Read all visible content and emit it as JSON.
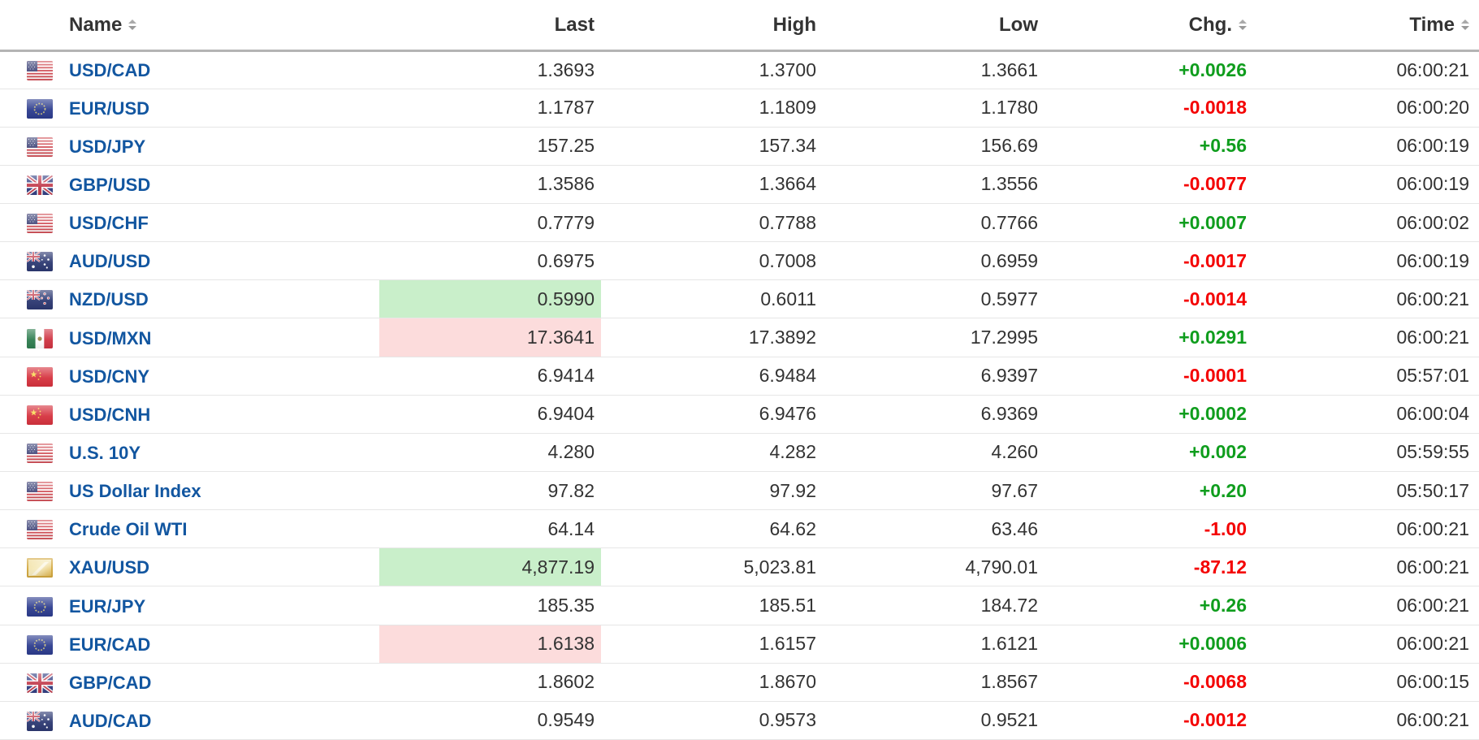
{
  "colors": {
    "link_blue": "#1256a0",
    "positive_green": "#0f9d1d",
    "negative_red": "#f40000",
    "highlight_up_bg": "#c9efca",
    "highlight_down_bg": "#fcdcdc",
    "header_text": "#333333",
    "value_text": "#333333"
  },
  "table": {
    "columns": [
      {
        "label": "Name",
        "sortable": true
      },
      {
        "label": "Last",
        "sortable": false
      },
      {
        "label": "High",
        "sortable": false
      },
      {
        "label": "Low",
        "sortable": false
      },
      {
        "label": "Chg.",
        "sortable": true
      },
      {
        "label": "Time",
        "sortable": true
      }
    ],
    "rows": [
      {
        "flag": "us-flag-icon",
        "name": "USD/CAD",
        "last": "1.3693",
        "high": "1.3700",
        "low": "1.3661",
        "chg": "+0.0026",
        "chg_direction": "up",
        "time": "06:00:21",
        "last_highlight": ""
      },
      {
        "flag": "eu-flag-icon",
        "name": "EUR/USD",
        "last": "1.1787",
        "high": "1.1809",
        "low": "1.1780",
        "chg": "-0.0018",
        "chg_direction": "down",
        "time": "06:00:20",
        "last_highlight": ""
      },
      {
        "flag": "us-flag-icon",
        "name": "USD/JPY",
        "last": "157.25",
        "high": "157.34",
        "low": "156.69",
        "chg": "+0.56",
        "chg_direction": "up",
        "time": "06:00:19",
        "last_highlight": ""
      },
      {
        "flag": "uk-flag-icon",
        "name": "GBP/USD",
        "last": "1.3586",
        "high": "1.3664",
        "low": "1.3556",
        "chg": "-0.0077",
        "chg_direction": "down",
        "time": "06:00:19",
        "last_highlight": ""
      },
      {
        "flag": "us-flag-icon",
        "name": "USD/CHF",
        "last": "0.7779",
        "high": "0.7788",
        "low": "0.7766",
        "chg": "+0.0007",
        "chg_direction": "up",
        "time": "06:00:02",
        "last_highlight": ""
      },
      {
        "flag": "australia-flag-icon",
        "name": "AUD/USD",
        "last": "0.6975",
        "high": "0.7008",
        "low": "0.6959",
        "chg": "-0.0017",
        "chg_direction": "down",
        "time": "06:00:19",
        "last_highlight": ""
      },
      {
        "flag": "new-zealand-flag-icon",
        "name": "NZD/USD",
        "last": "0.5990",
        "high": "0.6011",
        "low": "0.5977",
        "chg": "-0.0014",
        "chg_direction": "down",
        "time": "06:00:21",
        "last_highlight": "up"
      },
      {
        "flag": "mexico-flag-icon",
        "name": "USD/MXN",
        "last": "17.3641",
        "high": "17.3892",
        "low": "17.2995",
        "chg": "+0.0291",
        "chg_direction": "up",
        "time": "06:00:21",
        "last_highlight": "down"
      },
      {
        "flag": "china-flag-icon",
        "name": "USD/CNY",
        "last": "6.9414",
        "high": "6.9484",
        "low": "6.9397",
        "chg": "-0.0001",
        "chg_direction": "down",
        "time": "05:57:01",
        "last_highlight": ""
      },
      {
        "flag": "china-flag-icon",
        "name": "USD/CNH",
        "last": "6.9404",
        "high": "6.9476",
        "low": "6.9369",
        "chg": "+0.0002",
        "chg_direction": "up",
        "time": "06:00:04",
        "last_highlight": ""
      },
      {
        "flag": "us-flag-icon",
        "name": "U.S. 10Y",
        "last": "4.280",
        "high": "4.282",
        "low": "4.260",
        "chg": "+0.002",
        "chg_direction": "up",
        "time": "05:59:55",
        "last_highlight": ""
      },
      {
        "flag": "us-flag-icon",
        "name": "US Dollar Index",
        "last": "97.82",
        "high": "97.92",
        "low": "97.67",
        "chg": "+0.20",
        "chg_direction": "up",
        "time": "05:50:17",
        "last_highlight": ""
      },
      {
        "flag": "us-flag-icon",
        "name": "Crude Oil WTI",
        "last": "64.14",
        "high": "64.62",
        "low": "63.46",
        "chg": "-1.00",
        "chg_direction": "down",
        "time": "06:00:21",
        "last_highlight": ""
      },
      {
        "flag": "gold-icon",
        "name": "XAU/USD",
        "last": "4,877.19",
        "high": "5,023.81",
        "low": "4,790.01",
        "chg": "-87.12",
        "chg_direction": "down",
        "time": "06:00:21",
        "last_highlight": "up"
      },
      {
        "flag": "eu-flag-icon",
        "name": "EUR/JPY",
        "last": "185.35",
        "high": "185.51",
        "low": "184.72",
        "chg": "+0.26",
        "chg_direction": "up",
        "time": "06:00:21",
        "last_highlight": ""
      },
      {
        "flag": "eu-flag-icon",
        "name": "EUR/CAD",
        "last": "1.6138",
        "high": "1.6157",
        "low": "1.6121",
        "chg": "+0.0006",
        "chg_direction": "up",
        "time": "06:00:21",
        "last_highlight": "down"
      },
      {
        "flag": "uk-flag-icon",
        "name": "GBP/CAD",
        "last": "1.8602",
        "high": "1.8670",
        "low": "1.8567",
        "chg": "-0.0068",
        "chg_direction": "down",
        "time": "06:00:15",
        "last_highlight": ""
      },
      {
        "flag": "australia-flag-icon",
        "name": "AUD/CAD",
        "last": "0.9549",
        "high": "0.9573",
        "low": "0.9521",
        "chg": "-0.0012",
        "chg_direction": "down",
        "time": "06:00:21",
        "last_highlight": ""
      }
    ]
  }
}
